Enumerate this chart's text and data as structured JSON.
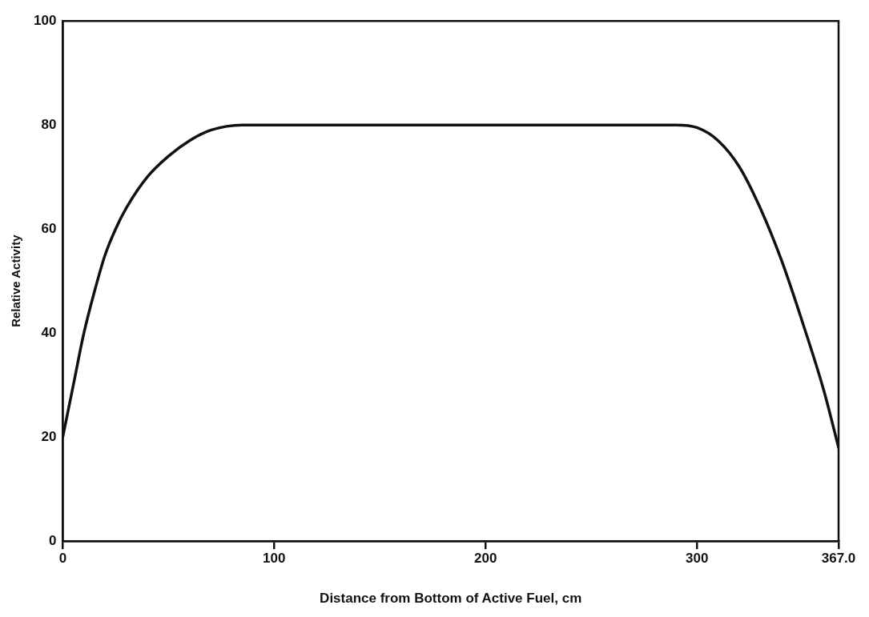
{
  "chart_data": {
    "type": "line",
    "xlabel": "Distance from Bottom of Active Fuel, cm",
    "ylabel": "Relative Activity",
    "xlim": [
      0,
      367
    ],
    "ylim": [
      0,
      100
    ],
    "xticks": [
      0,
      100,
      200,
      300,
      {
        "value": 367,
        "label": "367.0"
      }
    ],
    "yticks": [
      0,
      20,
      40,
      60,
      80,
      100
    ],
    "grid": false,
    "legend": false,
    "marker": "none",
    "line_style": "solid",
    "series": [
      {
        "color": "#111111",
        "x": [
          0,
          5,
          10,
          15,
          20,
          25,
          30,
          40,
          50,
          60,
          70,
          85,
          150,
          220,
          290,
          300,
          310,
          320,
          330,
          340,
          350,
          360,
          367
        ],
        "values": [
          20,
          30,
          40,
          48,
          55,
          60,
          64,
          70,
          74,
          77,
          79,
          80,
          80,
          80,
          80,
          79.5,
          77,
          72,
          64,
          54,
          42,
          29,
          18
        ]
      }
    ]
  }
}
